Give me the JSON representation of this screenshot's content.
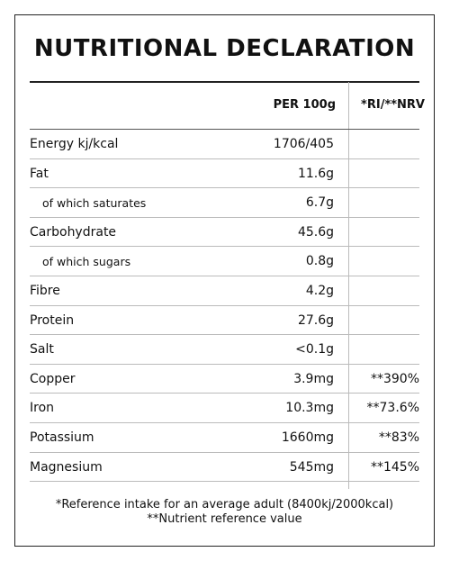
{
  "title": "NUTRITIONAL DECLARATION",
  "header": {
    "per": "PER 100g",
    "ri": "*RI/**NRV"
  },
  "rows": [
    {
      "label": "Energy kj/kcal",
      "value": "1706/405",
      "ri": ""
    },
    {
      "label": "Fat",
      "value": "11.6g",
      "ri": ""
    },
    {
      "label": "of which saturates",
      "value": "6.7g",
      "ri": ""
    },
    {
      "label": "Carbohydrate",
      "value": "45.6g",
      "ri": ""
    },
    {
      "label": "of which sugars",
      "value": "0.8g",
      "ri": ""
    },
    {
      "label": "Fibre",
      "value": "4.2g",
      "ri": ""
    },
    {
      "label": "Protein",
      "value": "27.6g",
      "ri": ""
    },
    {
      "label": "Salt",
      "value": "<0.1g",
      "ri": ""
    },
    {
      "label": "Copper",
      "value": "3.9mg",
      "ri": "**390%"
    },
    {
      "label": "Iron",
      "value": "10.3mg",
      "ri": "**73.6%"
    },
    {
      "label": "Potassium",
      "value": "1660mg",
      "ri": "**83%"
    },
    {
      "label": "Magnesium",
      "value": "545mg",
      "ri": "**145%"
    }
  ],
  "footer": {
    "line1": "*Reference intake for an average adult (8400kj/2000kcal)",
    "line2": "**Nutrient reference value"
  }
}
